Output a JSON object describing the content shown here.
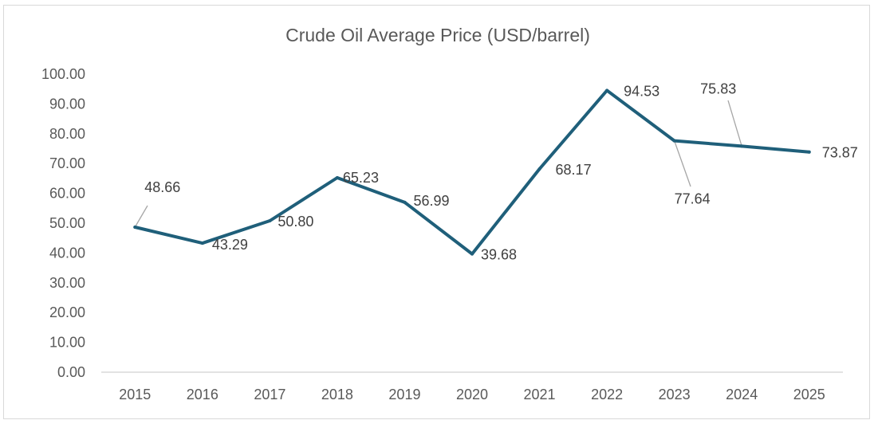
{
  "chart_data": {
    "type": "line",
    "title": "Crude Oil Average Price (USD/barrel)",
    "xlabel": "",
    "ylabel": "",
    "categories": [
      "2015",
      "2016",
      "2017",
      "2018",
      "2019",
      "2020",
      "2021",
      "2022",
      "2023",
      "2024",
      "2025"
    ],
    "series": [
      {
        "values": [
          48.66,
          43.29,
          50.8,
          65.23,
          56.99,
          39.68,
          68.17,
          94.53,
          77.64,
          75.83,
          73.87
        ],
        "value_labels": [
          "48.66",
          "43.29",
          "50.80",
          "65.23",
          "56.99",
          "39.68",
          "68.17",
          "94.53",
          "77.64",
          "75.83",
          "73.87"
        ],
        "color": "#1f5f7a"
      }
    ],
    "ylim": [
      0,
      100
    ],
    "y_ticks": [
      "0.00",
      "10.00",
      "20.00",
      "30.00",
      "40.00",
      "50.00",
      "60.00",
      "70.00",
      "80.00",
      "90.00",
      "100.00"
    ],
    "grid": false,
    "legend": "none",
    "axis_color": "#d9d9d9",
    "leader_line_color": "#a6a6a6"
  }
}
